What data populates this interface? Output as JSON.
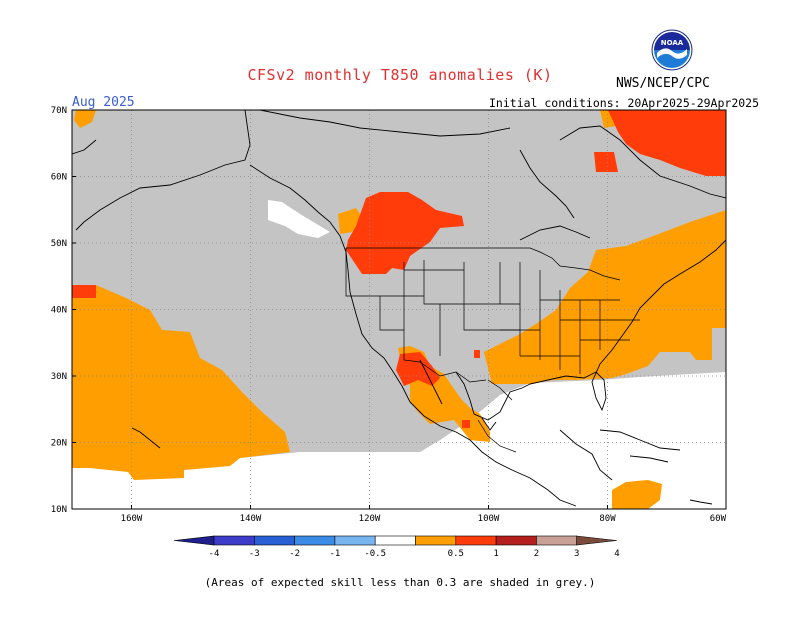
{
  "header": {
    "title": "CFSv2 monthly T850 anomalies (K)",
    "month": "Aug 2025",
    "initial_conditions": "Initial conditions: 20Apr2025-29Apr2025",
    "agency": "NWS/NCEP/CPC",
    "logo_text": "NOAA"
  },
  "map": {
    "lat_labels": [
      "70N",
      "60N",
      "50N",
      "40N",
      "30N",
      "20N",
      "10N"
    ],
    "lon_labels": [
      "160W",
      "140W",
      "120W",
      "100W",
      "80W",
      "60W"
    ],
    "lat_range": [
      10,
      70
    ],
    "lon_range": [
      -170,
      -60
    ],
    "colors": {
      "grey_low_skill": "#c4c4c4",
      "anom_0.5_1": "#ff9e00",
      "anom_1_2": "#ff3c0a",
      "anom_2_3": "#b81d1d",
      "ocean_no_signal": "#ffffff"
    }
  },
  "colorbar": {
    "labels": [
      "-4",
      "-3",
      "-2",
      "-1",
      "-0.5",
      "0.5",
      "1",
      "2",
      "3",
      "4"
    ],
    "colors": [
      "#1e1e8c",
      "#3c3cc8",
      "#2a60d6",
      "#3a8ce6",
      "#78b4f0",
      "#ffffff",
      "#ff9e00",
      "#ff3c0a",
      "#b41e1e",
      "#c8a096",
      "#7a4a3a"
    ]
  },
  "footer": {
    "note": "(Areas of expected skill less than 0.3 are shaded in grey.)"
  }
}
